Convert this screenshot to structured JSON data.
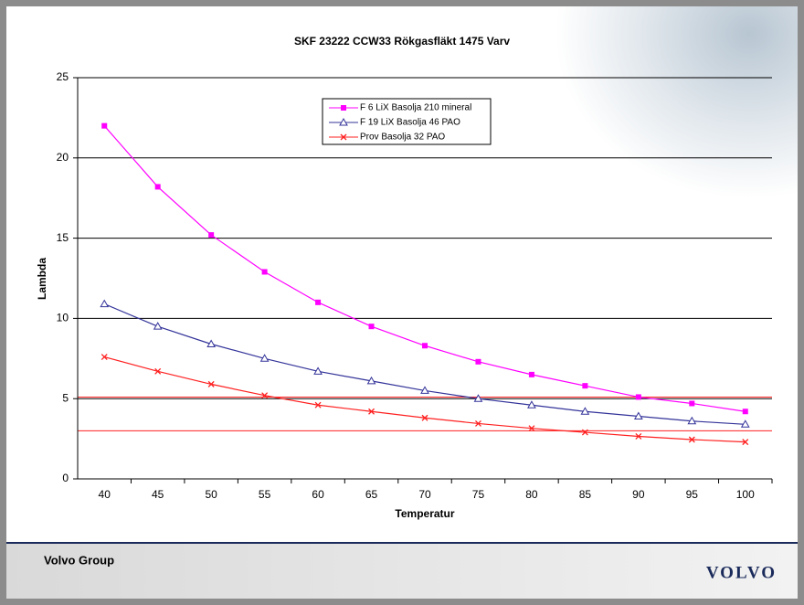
{
  "chart_data": {
    "type": "line",
    "title": "SKF 23222 CCW33 Rökgasfläkt 1475 Varv",
    "x_label": "Temperatur",
    "y_label": "Lambda",
    "categories": [
      40,
      45,
      50,
      55,
      60,
      65,
      70,
      75,
      80,
      85,
      90,
      95,
      100
    ],
    "series": [
      {
        "name": "F 6 LiX Basolja 210 mineral",
        "color": "#ff00ff",
        "marker": "square",
        "values": [
          22.0,
          18.2,
          15.2,
          12.9,
          11.0,
          9.5,
          8.3,
          7.3,
          6.5,
          5.8,
          5.1,
          4.7,
          4.2
        ]
      },
      {
        "name": "F 19 LiX Basolja 46 PAO",
        "color": "#33339a",
        "marker": "triangle",
        "values": [
          10.9,
          9.5,
          8.4,
          7.5,
          6.7,
          6.1,
          5.5,
          5.0,
          4.6,
          4.2,
          3.9,
          3.6,
          3.4
        ]
      },
      {
        "name": "Prov Basolja 32 PAO",
        "color": "#ff2020",
        "marker": "x",
        "values": [
          7.6,
          6.7,
          5.9,
          5.2,
          4.6,
          4.2,
          3.8,
          3.45,
          3.15,
          2.9,
          2.65,
          2.45,
          2.3
        ]
      }
    ],
    "reference_lines": {
      "color": "#ff2020",
      "values": [
        5.1,
        3.0
      ]
    },
    "ylim": [
      0,
      25
    ],
    "yticks": [
      0,
      5,
      10,
      15,
      20,
      25
    ],
    "grid": true,
    "legend": "top"
  },
  "footer": {
    "company": "Volvo Group",
    "logo": "VOLVO"
  }
}
